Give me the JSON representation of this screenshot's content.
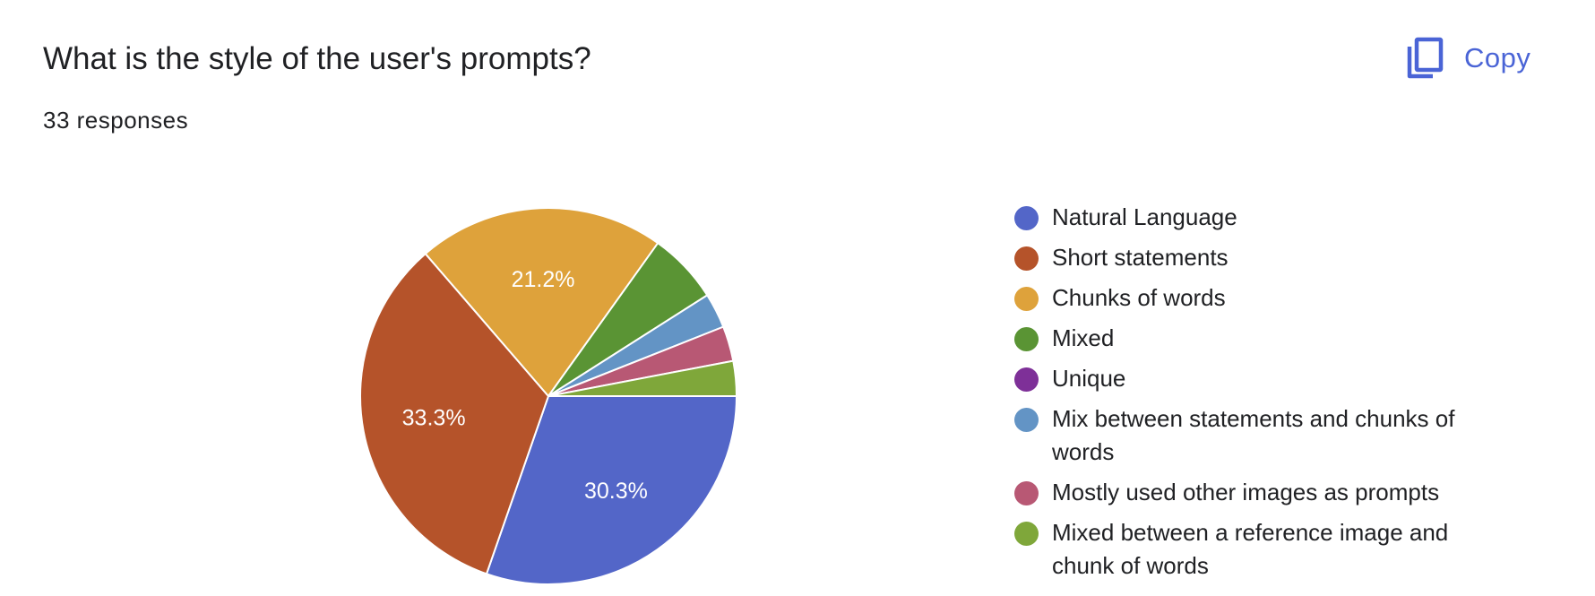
{
  "header": {
    "title": "What is the style of the user's prompts?",
    "responses": "33 responses",
    "copy_label": "Copy",
    "copy_icon": "copy-icon",
    "accent_color": "#4a64d6"
  },
  "chart_data": {
    "type": "pie",
    "total_responses": 33,
    "slices": [
      {
        "label": "Natural Language",
        "value": 30.3,
        "count": 10,
        "color": "#5366c8",
        "data_label": "30.3%"
      },
      {
        "label": "Short statements",
        "value": 33.3,
        "count": 11,
        "color": "#b5532a",
        "data_label": "33.3%"
      },
      {
        "label": "Chunks of words",
        "value": 21.2,
        "count": 7,
        "color": "#dea23b",
        "data_label": "21.2%"
      },
      {
        "label": "Mixed",
        "value": 6.1,
        "count": 2,
        "color": "#5a9434",
        "data_label": ""
      },
      {
        "label": "Unique",
        "value": 0,
        "count": 0,
        "color": "#7e3098",
        "data_label": ""
      },
      {
        "label": "Mix between statements and chunks of words",
        "value": 3.0,
        "count": 1,
        "color": "#6394c5",
        "data_label": ""
      },
      {
        "label": "Mostly used other images as prompts",
        "value": 3.0,
        "count": 1,
        "color": "#b85874",
        "data_label": ""
      },
      {
        "label": "Mixed between a reference image and chunk of words",
        "value": 3.0,
        "count": 1,
        "color": "#7fa73a",
        "data_label": ""
      }
    ],
    "legend_position": "right"
  }
}
